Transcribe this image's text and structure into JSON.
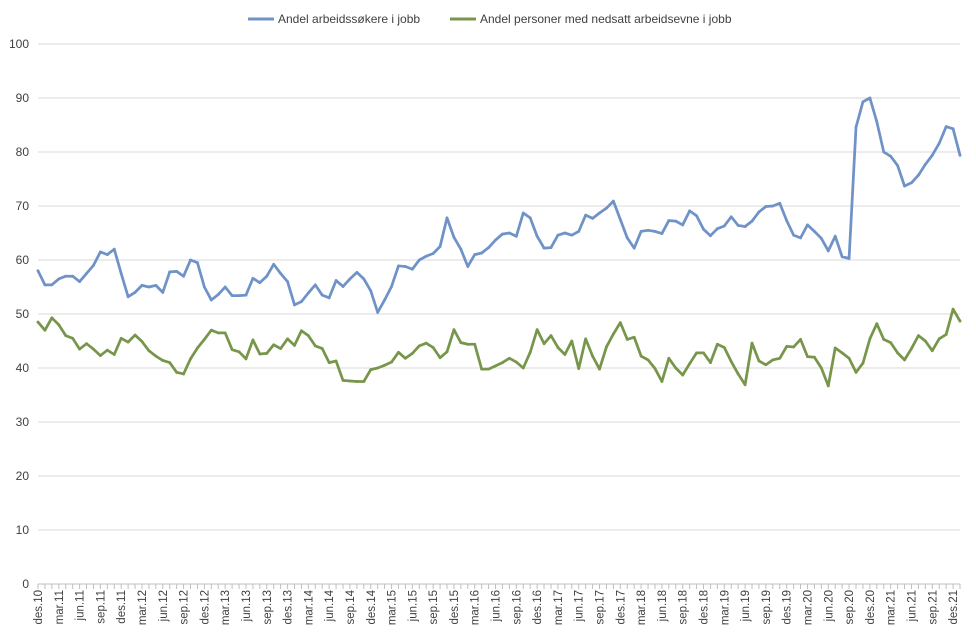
{
  "chart_data": {
    "type": "line",
    "title": "",
    "xlabel": "",
    "ylabel": "",
    "ylim": [
      0,
      100
    ],
    "y_ticks": [
      0,
      10,
      20,
      30,
      40,
      50,
      60,
      70,
      80,
      90,
      100
    ],
    "grid": "horizontal",
    "legend_position": "top",
    "x_start": "des.10",
    "x_end": "des.21",
    "x_tick_labels": [
      "des.10",
      "mar.11",
      "jun.11",
      "sep.11",
      "des.11",
      "mar.12",
      "jun.12",
      "sep.12",
      "des.12",
      "mar.13",
      "jun.13",
      "sep.13",
      "des.13",
      "mar.14",
      "jun.14",
      "sep.14",
      "des.14",
      "mar.15",
      "jun.15",
      "sep.15",
      "des.15",
      "mar.16",
      "jun.16",
      "sep.16",
      "des.16",
      "mar.17",
      "jun.17",
      "sep.17",
      "des.17",
      "mar.18",
      "jun.18",
      "sep.18",
      "des.18",
      "mar.19",
      "jun.19",
      "sep.19",
      "des.19",
      "mar.20",
      "jun.20",
      "sep.20",
      "des.20",
      "mar.21",
      "jun.21",
      "sep.21",
      "des.21"
    ],
    "series": [
      {
        "name": "Andel arbeidssøkere i jobb",
        "color": "#6f92c7",
        "values": [
          58.0,
          55.4,
          55.4,
          56.5,
          57.0,
          57.0,
          56.0,
          57.5,
          59.0,
          61.5,
          61.0,
          62.0,
          57.5,
          53.2,
          54.0,
          55.3,
          55.0,
          55.3,
          54.0,
          57.8,
          57.9,
          57.0,
          60.0,
          59.5,
          55.0,
          52.6,
          53.6,
          55.0,
          53.4,
          53.4,
          53.5,
          56.6,
          55.8,
          57.0,
          59.2,
          57.5,
          56.0,
          51.7,
          52.3,
          53.9,
          55.4,
          53.5,
          53.0,
          56.2,
          55.1,
          56.5,
          57.7,
          56.5,
          54.3,
          50.3,
          52.6,
          55.1,
          58.9,
          58.8,
          58.3,
          60.0,
          60.7,
          61.2,
          62.5,
          67.8,
          64.2,
          62.0,
          58.8,
          61.0,
          61.3,
          62.3,
          63.7,
          64.8,
          65.0,
          64.4,
          68.7,
          67.8,
          64.4,
          62.2,
          62.3,
          64.6,
          65.0,
          64.6,
          65.3,
          68.3,
          67.7,
          68.7,
          69.6,
          70.9,
          67.5,
          64.1,
          62.2,
          65.3,
          65.5,
          65.3,
          64.9,
          67.3,
          67.2,
          66.5,
          69.1,
          68.2,
          65.7,
          64.5,
          65.8,
          66.3,
          68.0,
          66.4,
          66.2,
          67.2,
          68.9,
          69.9,
          70.0,
          70.5,
          67.3,
          64.6,
          64.1,
          66.5,
          65.3,
          64.0,
          61.7,
          64.4,
          60.6,
          60.3,
          84.6,
          89.3,
          90.0,
          85.6,
          80.0,
          79.2,
          77.5,
          73.7,
          74.3,
          75.7,
          77.7,
          79.4,
          81.6,
          84.7,
          84.3,
          79.4
        ]
      },
      {
        "name": "Andel personer med nedsatt arbeidsevne i jobb",
        "color": "#78964b",
        "values": [
          48.5,
          47.0,
          49.3,
          48.0,
          46.0,
          45.5,
          43.5,
          44.5,
          43.5,
          42.3,
          43.3,
          42.5,
          45.5,
          44.8,
          46.1,
          44.9,
          43.2,
          42.2,
          41.4,
          41.0,
          39.2,
          38.9,
          41.7,
          43.7,
          45.3,
          47.0,
          46.5,
          46.5,
          43.4,
          43.0,
          41.7,
          45.2,
          42.6,
          42.7,
          44.3,
          43.6,
          45.4,
          44.2,
          46.9,
          46.0,
          44.1,
          43.6,
          41.0,
          41.3,
          37.7,
          37.6,
          37.5,
          37.5,
          39.7,
          40.0,
          40.5,
          41.1,
          42.9,
          41.8,
          42.7,
          44.1,
          44.6,
          43.8,
          41.9,
          43.0,
          47.1,
          44.7,
          44.4,
          44.4,
          39.8,
          39.8,
          40.4,
          41.0,
          41.8,
          41.1,
          40.0,
          42.9,
          47.1,
          44.5,
          46.0,
          43.8,
          42.5,
          45.0,
          39.9,
          45.4,
          42.2,
          39.8,
          43.9,
          46.3,
          48.4,
          45.3,
          45.7,
          42.2,
          41.5,
          39.9,
          37.5,
          41.8,
          40.0,
          38.7,
          40.8,
          42.8,
          42.8,
          41.0,
          44.4,
          43.8,
          41.2,
          38.9,
          36.9,
          44.6,
          41.3,
          40.6,
          41.5,
          41.8,
          44.0,
          43.9,
          45.3,
          42.1,
          42.0,
          40.0,
          36.7,
          43.7,
          42.8,
          41.8,
          39.2,
          40.9,
          45.4,
          48.2,
          45.3,
          44.7,
          42.8,
          41.5,
          43.6,
          46.0,
          45.0,
          43.2,
          45.4,
          46.2,
          50.9,
          48.7
        ]
      }
    ]
  }
}
